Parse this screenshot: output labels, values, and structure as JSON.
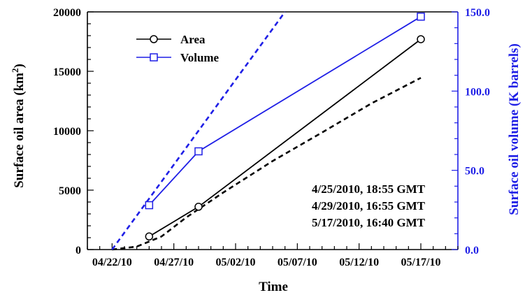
{
  "chart_data": {
    "type": "line",
    "xlabel": "Time",
    "ylabel_left": "Surface oil area (km",
    "ylabel_left_sup": "2",
    "ylabel_left_close": ")",
    "ylabel_right": "Surface oil volume (K barrels)",
    "x_ticks": [
      "04/22/10",
      "04/27/10",
      "05/02/10",
      "05/07/10",
      "05/12/10",
      "05/17/10"
    ],
    "x_range": [
      "2010-04-20",
      "2010-05-20"
    ],
    "y_left_ticks": [
      "0",
      "5000",
      "10000",
      "15000",
      "20000"
    ],
    "y_left_range": [
      0,
      20000
    ],
    "y_right_ticks": [
      "0.0",
      "50.0",
      "100.0",
      "150.0"
    ],
    "y_right_range": [
      0,
      150
    ],
    "series": [
      {
        "name": "Area",
        "axis": "left",
        "color": "#000000",
        "marker": "circle",
        "x": [
          "2010-04-25",
          "2010-04-29",
          "2010-05-17"
        ],
        "y": [
          1100,
          3600,
          17700
        ]
      },
      {
        "name": "Volume",
        "axis": "right",
        "color": "#1f1fe6",
        "marker": "square",
        "x": [
          "2010-04-25",
          "2010-04-29",
          "2010-05-17"
        ],
        "y": [
          28,
          62,
          147
        ]
      }
    ],
    "trend_lines": [
      {
        "axis": "left",
        "color": "#000000",
        "style": "dashed",
        "x": [
          "2010-04-22",
          "2010-04-24",
          "2010-04-26",
          "2010-04-28",
          "2010-05-01",
          "2010-05-05",
          "2010-05-09",
          "2010-05-13",
          "2010-05-17"
        ],
        "y": [
          0,
          250,
          1100,
          2700,
          4800,
          7450,
          9850,
          12300,
          14450
        ]
      },
      {
        "axis": "right",
        "color": "#1f1fe6",
        "style": "dashed",
        "x": [
          "2010-04-22",
          "2010-05-06"
        ],
        "y": [
          0,
          150
        ]
      }
    ],
    "annotations": [
      "4/25/2010, 18:55 GMT",
      "4/29/2010, 16:55 GMT",
      "5/17/2010, 16:40 GMT"
    ],
    "legend_position": "top-left",
    "grid": false
  }
}
